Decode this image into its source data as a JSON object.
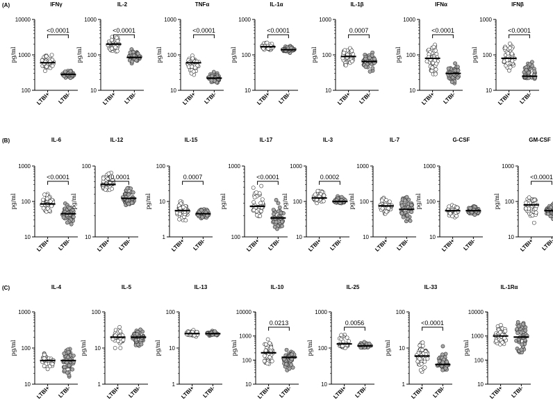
{
  "chart_data": [
    {
      "type": "scatter",
      "row": "A",
      "title": "IFNγ",
      "ylabel": "pg/ml",
      "yscale": "log",
      "ylim": [
        100,
        10000
      ],
      "yticks": [
        {
          "v": 100,
          "label": "100"
        },
        {
          "v": 1000,
          "label": "1000"
        },
        {
          "v": 10000,
          "label": "10000"
        }
      ],
      "categories": [
        "LTBI+",
        "LTBI-"
      ],
      "series": [
        {
          "category": "LTBI+",
          "fill": "#ffffff",
          "median": 600,
          "range": [
            300,
            1500
          ],
          "n": 45
        },
        {
          "category": "LTBI-",
          "fill": "#a6a6a6",
          "median": 280,
          "range": [
            200,
            400
          ],
          "n": 45
        }
      ],
      "pvalue": "<0.0001"
    },
    {
      "type": "scatter",
      "row": "A",
      "title": "IL-2",
      "ylabel": "pg/ml",
      "yscale": "log",
      "ylim": [
        10,
        1000
      ],
      "yticks": [
        {
          "v": 10,
          "label": "10"
        },
        {
          "v": 100,
          "label": "100"
        },
        {
          "v": 1000,
          "label": "1000"
        }
      ],
      "categories": [
        "LTBI+",
        "LTBI-"
      ],
      "series": [
        {
          "category": "LTBI+",
          "fill": "#ffffff",
          "median": 200,
          "range": [
            100,
            450
          ],
          "n": 45
        },
        {
          "category": "LTBI-",
          "fill": "#a6a6a6",
          "median": 85,
          "range": [
            50,
            150
          ],
          "n": 45
        }
      ],
      "pvalue": "<0.0001"
    },
    {
      "type": "scatter",
      "row": "A",
      "title": "TNFα",
      "ylabel": "pg/ml",
      "yscale": "log",
      "ylim": [
        10,
        1000
      ],
      "yticks": [
        {
          "v": 10,
          "label": "10"
        },
        {
          "v": 100,
          "label": "100"
        },
        {
          "v": 1000,
          "label": "1000"
        }
      ],
      "categories": [
        "LTBI+",
        "LTBI-"
      ],
      "series": [
        {
          "category": "LTBI+",
          "fill": "#ffffff",
          "median": 60,
          "range": [
            25,
            110
          ],
          "n": 45
        },
        {
          "category": "LTBI-",
          "fill": "#a6a6a6",
          "median": 22,
          "range": [
            15,
            35
          ],
          "n": 45
        }
      ],
      "pvalue": "<0.0001"
    },
    {
      "type": "scatter",
      "row": "A",
      "title": "IL-1α",
      "ylabel": "pg/ml",
      "yscale": "log",
      "ylim": [
        10,
        1000
      ],
      "yticks": [
        {
          "v": 10,
          "label": "10"
        },
        {
          "v": 100,
          "label": "100"
        },
        {
          "v": 1000,
          "label": "1000"
        }
      ],
      "categories": [
        "LTBI+",
        "LTBI-"
      ],
      "series": [
        {
          "category": "LTBI+",
          "fill": "#ffffff",
          "median": 170,
          "range": [
            120,
            250
          ],
          "n": 40
        },
        {
          "category": "LTBI-",
          "fill": "#a6a6a6",
          "median": 140,
          "range": [
            110,
            190
          ],
          "n": 40
        }
      ],
      "pvalue": "<0.0001"
    },
    {
      "type": "scatter",
      "row": "A",
      "title": "IL-1β",
      "ylabel": "pg/ml",
      "yscale": "log",
      "ylim": [
        10,
        1000
      ],
      "yticks": [
        {
          "v": 10,
          "label": "10"
        },
        {
          "v": 100,
          "label": "100"
        },
        {
          "v": 1000,
          "label": "1000"
        }
      ],
      "categories": [
        "LTBI+",
        "LTBI-"
      ],
      "series": [
        {
          "category": "LTBI+",
          "fill": "#ffffff",
          "median": 90,
          "range": [
            40,
            200
          ],
          "n": 45
        },
        {
          "category": "LTBI-",
          "fill": "#a6a6a6",
          "median": 65,
          "range": [
            25,
            150
          ],
          "n": 45
        }
      ],
      "pvalue": "0.0007"
    },
    {
      "type": "scatter",
      "row": "A",
      "title": "IFNα",
      "ylabel": "pg/ml",
      "yscale": "log",
      "ylim": [
        10,
        1000
      ],
      "yticks": [
        {
          "v": 10,
          "label": "10"
        },
        {
          "v": 100,
          "label": "100"
        },
        {
          "v": 1000,
          "label": "1000"
        }
      ],
      "categories": [
        "LTBI+",
        "LTBI-"
      ],
      "series": [
        {
          "category": "LTBI+",
          "fill": "#ffffff",
          "median": 80,
          "range": [
            15,
            300
          ],
          "n": 45
        },
        {
          "category": "LTBI-",
          "fill": "#a6a6a6",
          "median": 30,
          "range": [
            12,
            80
          ],
          "n": 45
        }
      ],
      "pvalue": "<0.0001"
    },
    {
      "type": "scatter",
      "row": "A",
      "title": "IFNβ",
      "ylabel": "pg/ml",
      "yscale": "log",
      "ylim": [
        10,
        1000
      ],
      "yticks": [
        {
          "v": 10,
          "label": "10"
        },
        {
          "v": 100,
          "label": "100"
        },
        {
          "v": 1000,
          "label": "1000"
        }
      ],
      "categories": [
        "LTBI+",
        "LTBI-"
      ],
      "series": [
        {
          "category": "LTBI+",
          "fill": "#ffffff",
          "median": 80,
          "range": [
            30,
            300
          ],
          "n": 45
        },
        {
          "category": "LTBI-",
          "fill": "#a6a6a6",
          "median": 25,
          "range": [
            15,
            90
          ],
          "n": 45
        }
      ],
      "pvalue": "<0.0001"
    },
    {
      "type": "scatter",
      "row": "B",
      "title": "IL-6",
      "ylabel": "pg/ml",
      "yscale": "log",
      "ylim": [
        10,
        1000
      ],
      "yticks": [
        {
          "v": 10,
          "label": "10"
        },
        {
          "v": 100,
          "label": "100"
        },
        {
          "v": 1000,
          "label": "1000"
        }
      ],
      "categories": [
        "LTBI+",
        "LTBI-"
      ],
      "series": [
        {
          "category": "LTBI+",
          "fill": "#ffffff",
          "median": 85,
          "range": [
            30,
            200
          ],
          "n": 45
        },
        {
          "category": "LTBI-",
          "fill": "#a6a6a6",
          "median": 45,
          "range": [
            15,
            100
          ],
          "n": 45
        }
      ],
      "pvalue": "<0.0001"
    },
    {
      "type": "scatter",
      "row": "B",
      "title": "IL-12",
      "ylabel": "pg/ml",
      "yscale": "log",
      "ylim": [
        10,
        100
      ],
      "yticks": [
        {
          "v": 10,
          "label": "10"
        },
        {
          "v": 100,
          "label": "100"
        }
      ],
      "categories": [
        "LTBI+",
        "LTBI-"
      ],
      "series": [
        {
          "category": "LTBI+",
          "fill": "#ffffff",
          "median": 55,
          "range": [
            40,
            95
          ],
          "n": 45
        },
        {
          "category": "LTBI-",
          "fill": "#a6a6a6",
          "median": 35,
          "range": [
            25,
            60
          ],
          "n": 45
        }
      ],
      "pvalue": "<0.0001"
    },
    {
      "type": "scatter",
      "row": "B",
      "title": "IL-15",
      "ylabel": "pg/ml",
      "yscale": "log",
      "ylim": [
        1,
        100
      ],
      "yticks": [
        {
          "v": 1,
          "label": "1"
        },
        {
          "v": 10,
          "label": "10"
        },
        {
          "v": 100,
          "label": "100"
        }
      ],
      "categories": [
        "LTBI+",
        "LTBI-"
      ],
      "series": [
        {
          "category": "LTBI+",
          "fill": "#ffffff",
          "median": 5.5,
          "range": [
            2,
            13
          ],
          "n": 45
        },
        {
          "category": "LTBI-",
          "fill": "#a6a6a6",
          "median": 4.5,
          "range": [
            3,
            7
          ],
          "n": 45
        }
      ],
      "pvalue": "0.0007"
    },
    {
      "type": "scatter",
      "row": "B",
      "title": "IL-17",
      "ylabel": "pg/ml",
      "yscale": "log",
      "ylim": [
        100,
        1000
      ],
      "yticks": [
        {
          "v": 100,
          "label": "100"
        },
        {
          "v": 1000,
          "label": "1000"
        }
      ],
      "categories": [
        "LTBI+",
        "LTBI-"
      ],
      "series": [
        {
          "category": "LTBI+",
          "fill": "#ffffff",
          "median": 270,
          "range": [
            160,
            900
          ],
          "n": 45
        },
        {
          "category": "LTBI-",
          "fill": "#a6a6a6",
          "median": 185,
          "range": [
            120,
            380
          ],
          "n": 45
        }
      ],
      "pvalue": "<0.0001"
    },
    {
      "type": "scatter",
      "row": "B",
      "title": "IL-3",
      "ylabel": "pg/ml",
      "yscale": "log",
      "ylim": [
        10,
        1000
      ],
      "yticks": [
        {
          "v": 10,
          "label": "10"
        },
        {
          "v": 100,
          "label": "100"
        },
        {
          "v": 1000,
          "label": "1000"
        }
      ],
      "categories": [
        "LTBI+",
        "LTBI-"
      ],
      "series": [
        {
          "category": "LTBI+",
          "fill": "#ffffff",
          "median": 125,
          "range": [
            80,
            250
          ],
          "n": 45
        },
        {
          "category": "LTBI-",
          "fill": "#a6a6a6",
          "median": 100,
          "range": [
            85,
            150
          ],
          "n": 45
        }
      ],
      "pvalue": "0.0002"
    },
    {
      "type": "scatter",
      "row": "B",
      "title": "IL-7",
      "ylabel": "pg/ml",
      "yscale": "log",
      "ylim": [
        10,
        1000
      ],
      "yticks": [
        {
          "v": 10,
          "label": "10"
        },
        {
          "v": 100,
          "label": "100"
        },
        {
          "v": 1000,
          "label": "1000"
        }
      ],
      "categories": [
        "LTBI+",
        "LTBI-"
      ],
      "series": [
        {
          "category": "LTBI+",
          "fill": "#ffffff",
          "median": 75,
          "range": [
            35,
            180
          ],
          "n": 45
        },
        {
          "category": "LTBI-",
          "fill": "#a6a6a6",
          "median": 60,
          "range": [
            12,
            250
          ],
          "n": 45
        }
      ],
      "pvalue": ""
    },
    {
      "type": "scatter",
      "row": "B",
      "title": "G-CSF",
      "ylabel": "pg/ml",
      "yscale": "log",
      "ylim": [
        10,
        1000
      ],
      "yticks": [
        {
          "v": 10,
          "label": "10"
        },
        {
          "v": 100,
          "label": "100"
        },
        {
          "v": 1000,
          "label": "1000"
        }
      ],
      "categories": [
        "LTBI+",
        "LTBI-"
      ],
      "series": [
        {
          "category": "LTBI+",
          "fill": "#ffffff",
          "median": 55,
          "range": [
            30,
            100
          ],
          "n": 45
        },
        {
          "category": "LTBI-",
          "fill": "#a6a6a6",
          "median": 55,
          "range": [
            35,
            85
          ],
          "n": 45
        }
      ],
      "pvalue": ""
    },
    {
      "type": "scatter",
      "row": "B",
      "title": "GM-CSF",
      "ylabel": "pg/ml",
      "yscale": "log",
      "ylim": [
        10,
        1000
      ],
      "yticks": [
        {
          "v": 10,
          "label": "10"
        },
        {
          "v": 100,
          "label": "100"
        },
        {
          "v": 1000,
          "label": "1000"
        }
      ],
      "categories": [
        "LTBI+",
        "LTBI-"
      ],
      "series": [
        {
          "category": "LTBI+",
          "fill": "#ffffff",
          "median": 80,
          "range": [
            20,
            200
          ],
          "n": 45
        },
        {
          "category": "LTBI-",
          "fill": "#a6a6a6",
          "median": 55,
          "range": [
            30,
            100
          ],
          "n": 45
        }
      ],
      "pvalue": "<0.0001"
    },
    {
      "type": "scatter",
      "row": "C",
      "title": "IL-4",
      "ylabel": "pg/ml",
      "yscale": "log",
      "ylim": [
        10,
        1000
      ],
      "yticks": [
        {
          "v": 10,
          "label": "10"
        },
        {
          "v": 100,
          "label": "100"
        },
        {
          "v": 1000,
          "label": "1000"
        }
      ],
      "categories": [
        "LTBI+",
        "LTBI-"
      ],
      "series": [
        {
          "category": "LTBI+",
          "fill": "#ffffff",
          "median": 45,
          "range": [
            20,
            90
          ],
          "n": 45
        },
        {
          "category": "LTBI-",
          "fill": "#a6a6a6",
          "median": 45,
          "range": [
            12,
            150
          ],
          "n": 45
        }
      ],
      "pvalue": ""
    },
    {
      "type": "scatter",
      "row": "C",
      "title": "IL-5",
      "ylabel": "pg/ml",
      "yscale": "log",
      "ylim": [
        1,
        100
      ],
      "yticks": [
        {
          "v": 1,
          "label": "1"
        },
        {
          "v": 10,
          "label": "10"
        },
        {
          "v": 100,
          "label": "100"
        }
      ],
      "categories": [
        "LTBI+",
        "LTBI-"
      ],
      "series": [
        {
          "category": "LTBI+",
          "fill": "#ffffff",
          "median": 20,
          "range": [
            8,
            40
          ],
          "n": 45
        },
        {
          "category": "LTBI-",
          "fill": "#a6a6a6",
          "median": 20,
          "range": [
            10,
            38
          ],
          "n": 45
        }
      ],
      "pvalue": ""
    },
    {
      "type": "scatter",
      "row": "C",
      "title": "IL-13",
      "ylabel": "pg/ml",
      "yscale": "log",
      "ylim": [
        1,
        100
      ],
      "yticks": [
        {
          "v": 1,
          "label": "1"
        },
        {
          "v": 10,
          "label": "10"
        },
        {
          "v": 100,
          "label": "100"
        }
      ],
      "categories": [
        "LTBI+",
        "LTBI-"
      ],
      "series": [
        {
          "category": "LTBI+",
          "fill": "#ffffff",
          "median": 25,
          "range": [
            18,
            35
          ],
          "n": 40
        },
        {
          "category": "LTBI-",
          "fill": "#a6a6a6",
          "median": 25,
          "range": [
            20,
            32
          ],
          "n": 40
        }
      ],
      "pvalue": ""
    },
    {
      "type": "scatter",
      "row": "C",
      "title": "IL-10",
      "ylabel": "pg/ml",
      "yscale": "log",
      "ylim": [
        10,
        10000
      ],
      "yticks": [
        {
          "v": 10,
          "label": "10"
        },
        {
          "v": 100,
          "label": "100"
        },
        {
          "v": 1000,
          "label": "1000"
        },
        {
          "v": 10000,
          "label": "10000"
        }
      ],
      "categories": [
        "LTBI+",
        "LTBI-"
      ],
      "series": [
        {
          "category": "LTBI+",
          "fill": "#ffffff",
          "median": 200,
          "range": [
            40,
            1100
          ],
          "n": 45
        },
        {
          "category": "LTBI-",
          "fill": "#a6a6a6",
          "median": 130,
          "range": [
            20,
            300
          ],
          "n": 45
        }
      ],
      "pvalue": "0.0213"
    },
    {
      "type": "scatter",
      "row": "C",
      "title": "IL-25",
      "ylabel": "pg/ml",
      "yscale": "log",
      "ylim": [
        10,
        1000
      ],
      "yticks": [
        {
          "v": 10,
          "label": "10"
        },
        {
          "v": 100,
          "label": "100"
        },
        {
          "v": 1000,
          "label": "1000"
        }
      ],
      "categories": [
        "LTBI+",
        "LTBI-"
      ],
      "series": [
        {
          "category": "LTBI+",
          "fill": "#ffffff",
          "median": 130,
          "range": [
            90,
            400
          ],
          "n": 40
        },
        {
          "category": "LTBI-",
          "fill": "#a6a6a6",
          "median": 115,
          "range": [
            90,
            160
          ],
          "n": 40
        }
      ],
      "pvalue": "0.0056"
    },
    {
      "type": "scatter",
      "row": "C",
      "title": "IL-33",
      "ylabel": "pg/ml",
      "yscale": "log",
      "ylim": [
        1,
        100
      ],
      "yticks": [
        {
          "v": 1,
          "label": "1"
        },
        {
          "v": 10,
          "label": "10"
        },
        {
          "v": 100,
          "label": "100"
        }
      ],
      "categories": [
        "LTBI+",
        "LTBI-"
      ],
      "series": [
        {
          "category": "LTBI+",
          "fill": "#ffffff",
          "median": 6,
          "range": [
            2,
            25
          ],
          "n": 45
        },
        {
          "category": "LTBI-",
          "fill": "#a6a6a6",
          "median": 3.5,
          "range": [
            1.5,
            12
          ],
          "n": 45
        }
      ],
      "pvalue": "<0.0001"
    },
    {
      "type": "scatter",
      "row": "C",
      "title": "IL-1Rα",
      "ylabel": "pg/ml",
      "yscale": "log",
      "ylim": [
        10,
        10000
      ],
      "yticks": [
        {
          "v": 10,
          "label": "10"
        },
        {
          "v": 100,
          "label": "100"
        },
        {
          "v": 1000,
          "label": "1000"
        },
        {
          "v": 10000,
          "label": "10000"
        }
      ],
      "categories": [
        "LTBI+",
        "LTBI-"
      ],
      "series": [
        {
          "category": "LTBI+",
          "fill": "#ffffff",
          "median": 1000,
          "range": [
            100,
            4500
          ],
          "n": 45
        },
        {
          "category": "LTBI-",
          "fill": "#a6a6a6",
          "median": 900,
          "range": [
            60,
            7000
          ],
          "n": 45
        }
      ],
      "pvalue": ""
    }
  ],
  "panels": {
    "A": "(A)",
    "B": "(B)",
    "C": "(C)"
  }
}
